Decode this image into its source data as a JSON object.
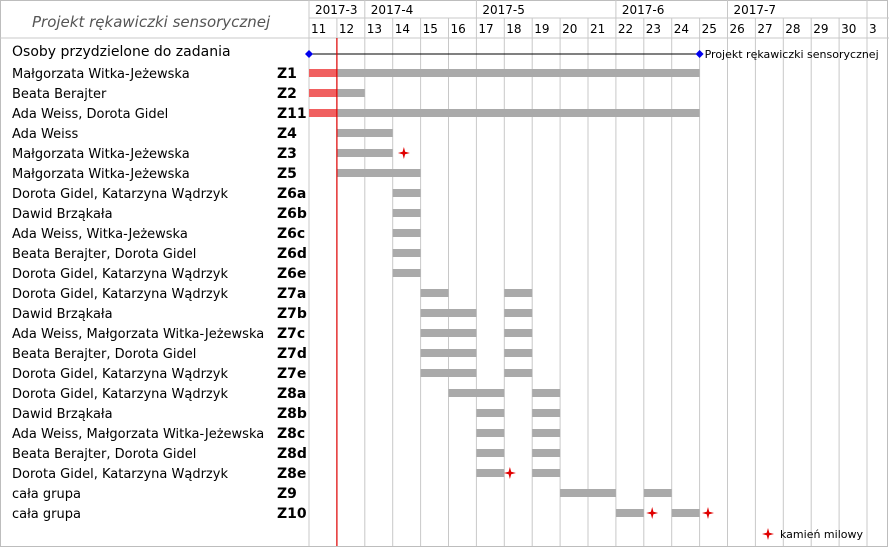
{
  "title": "Projekt rękawiczki sensorycznej",
  "legend_label": "kamień milowy",
  "summary_label": "Projekt rękawiczki sensorycznej",
  "colors": {
    "task_bar": "#aaaaaa",
    "done_bar": "#f06060",
    "milestone": "#e00000",
    "summary": "#000000",
    "summary_marker": "#0000ee",
    "today_line": "#e00000",
    "grid": "#c8c8c8"
  },
  "chart_data": {
    "type": "gantt",
    "x_unit": "week",
    "months": [
      {
        "label": "2017-3",
        "first_week": 11,
        "last_week": 12
      },
      {
        "label": "2017-4",
        "first_week": 13,
        "last_week": 16
      },
      {
        "label": "2017-5",
        "first_week": 17,
        "last_week": 21
      },
      {
        "label": "2017-6",
        "first_week": 22,
        "last_week": 25
      },
      {
        "label": "2017-7",
        "first_week": 26,
        "last_week": 30
      },
      {
        "label": "",
        "first_week": 31,
        "last_week": 31
      }
    ],
    "weeks": [
      "11",
      "12",
      "13",
      "14",
      "15",
      "16",
      "17",
      "18",
      "19",
      "20",
      "21",
      "22",
      "23",
      "24",
      "25",
      "26",
      "27",
      "28",
      "29",
      "30",
      "3"
    ],
    "today_week": 12,
    "header_label": "Osoby przydzielone do zadania",
    "summary": {
      "label": "Projekt rękawiczki sensorycznej",
      "start": 11,
      "end": 25
    },
    "tasks": [
      {
        "people": "Małgorzata Witka-Jeżewska",
        "id": "Z1",
        "bars": [
          [
            11,
            25
          ]
        ],
        "done_until": 12,
        "milestones": []
      },
      {
        "people": "Beata Berajter",
        "id": "Z2",
        "bars": [
          [
            11,
            13
          ]
        ],
        "done_until": 12,
        "milestones": []
      },
      {
        "people": "Ada Weiss, Dorota Gidel",
        "id": "Z11",
        "bars": [
          [
            11,
            25
          ]
        ],
        "done_until": 12,
        "milestones": []
      },
      {
        "people": "Ada Weiss",
        "id": "Z4",
        "bars": [
          [
            12,
            14
          ]
        ],
        "done_until": null,
        "milestones": []
      },
      {
        "people": "Małgorzata Witka-Jeżewska",
        "id": "Z3",
        "bars": [
          [
            12,
            14
          ]
        ],
        "done_until": null,
        "milestones": [
          14.4
        ]
      },
      {
        "people": "Małgorzata Witka-Jeżewska",
        "id": "Z5",
        "bars": [
          [
            12,
            15
          ]
        ],
        "done_until": null,
        "milestones": []
      },
      {
        "people": "Dorota Gidel, Katarzyna Wądrzyk",
        "id": "Z6a",
        "bars": [
          [
            14,
            15
          ]
        ],
        "done_until": null,
        "milestones": []
      },
      {
        "people": "Dawid Brząkała",
        "id": "Z6b",
        "bars": [
          [
            14,
            15
          ]
        ],
        "done_until": null,
        "milestones": []
      },
      {
        "people": "Ada Weiss, Witka-Jeżewska",
        "id": "Z6c",
        "bars": [
          [
            14,
            15
          ]
        ],
        "done_until": null,
        "milestones": []
      },
      {
        "people": "Beata Berajter, Dorota Gidel",
        "id": "Z6d",
        "bars": [
          [
            14,
            15
          ]
        ],
        "done_until": null,
        "milestones": []
      },
      {
        "people": "Dorota Gidel, Katarzyna Wądrzyk",
        "id": "Z6e",
        "bars": [
          [
            14,
            15
          ]
        ],
        "done_until": null,
        "milestones": []
      },
      {
        "people": "Dorota Gidel, Katarzyna Wądrzyk",
        "id": "Z7a",
        "bars": [
          [
            15,
            16
          ],
          [
            18,
            19
          ]
        ],
        "done_until": null,
        "milestones": []
      },
      {
        "people": "Dawid Brząkała",
        "id": "Z7b",
        "bars": [
          [
            15,
            17
          ],
          [
            18,
            19
          ]
        ],
        "done_until": null,
        "milestones": []
      },
      {
        "people": "Ada Weiss, Małgorzata Witka-Jeżewska",
        "id": "Z7c",
        "bars": [
          [
            15,
            17
          ],
          [
            18,
            19
          ]
        ],
        "done_until": null,
        "milestones": []
      },
      {
        "people": "Beata Berajter, Dorota Gidel",
        "id": "Z7d",
        "bars": [
          [
            15,
            17
          ],
          [
            18,
            19
          ]
        ],
        "done_until": null,
        "milestones": []
      },
      {
        "people": "Dorota Gidel, Katarzyna Wądrzyk",
        "id": "Z7e",
        "bars": [
          [
            15,
            17
          ],
          [
            18,
            19
          ]
        ],
        "done_until": null,
        "milestones": []
      },
      {
        "people": "Dorota Gidel, Katarzyna Wądrzyk",
        "id": "Z8a",
        "bars": [
          [
            16,
            18
          ],
          [
            19,
            20
          ]
        ],
        "done_until": null,
        "milestones": []
      },
      {
        "people": "Dawid Brząkała",
        "id": "Z8b",
        "bars": [
          [
            17,
            18
          ],
          [
            19,
            20
          ]
        ],
        "done_until": null,
        "milestones": []
      },
      {
        "people": "Ada Weiss, Małgorzata Witka-Jeżewska",
        "id": "Z8c",
        "bars": [
          [
            17,
            18
          ],
          [
            19,
            20
          ]
        ],
        "done_until": null,
        "milestones": []
      },
      {
        "people": "Beata Berajter, Dorota Gidel",
        "id": "Z8d",
        "bars": [
          [
            17,
            18
          ],
          [
            19,
            20
          ]
        ],
        "done_until": null,
        "milestones": []
      },
      {
        "people": "Dorota Gidel, Katarzyna Wądrzyk",
        "id": "Z8e",
        "bars": [
          [
            17,
            18
          ],
          [
            19,
            20
          ]
        ],
        "done_until": null,
        "milestones": [
          18.2
        ]
      },
      {
        "people": "cała grupa",
        "id": "Z9",
        "bars": [
          [
            20,
            22
          ],
          [
            23,
            24
          ]
        ],
        "done_until": null,
        "milestones": []
      },
      {
        "people": "cała grupa",
        "id": "Z10",
        "bars": [
          [
            22,
            23
          ],
          [
            24,
            25
          ]
        ],
        "done_until": null,
        "milestones": [
          23.3,
          25.3
        ]
      }
    ]
  }
}
